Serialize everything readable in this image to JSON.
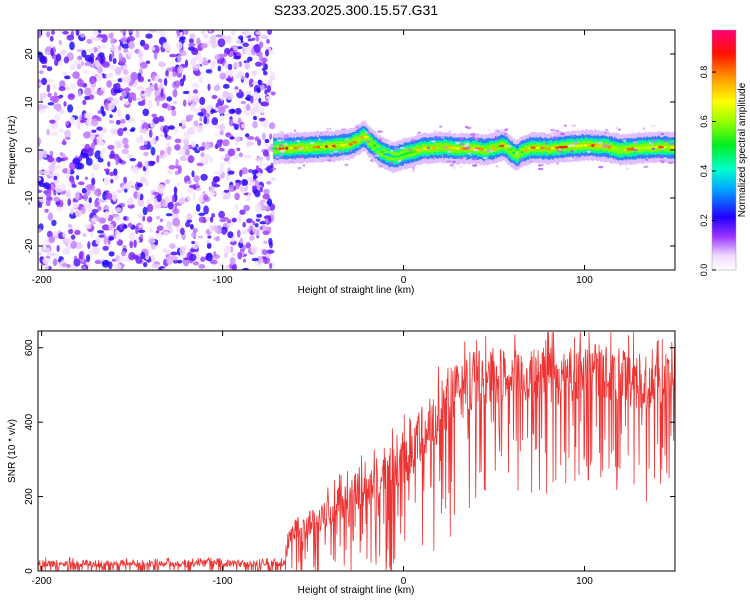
{
  "title": "S233.2025.300.15.57.G31",
  "chart_data": [
    {
      "type": "heatmap",
      "xlabel": "Height of straight line (km)",
      "ylabel": "Frequency (Hz)",
      "xlim": [
        -202,
        150
      ],
      "ylim": [
        -25,
        25
      ],
      "xticks": [
        -200,
        -100,
        0,
        100
      ],
      "yticks": [
        -20,
        -10,
        0,
        10,
        20
      ],
      "noise_region": {
        "x_from": -202,
        "x_to": -72,
        "description_value": "low-amplitude scattered noise"
      },
      "signal_trace": {
        "x": [
          -72,
          -70,
          -60,
          -50,
          -40,
          -30,
          -25,
          -22,
          -20,
          -15,
          -10,
          -5,
          0,
          5,
          10,
          20,
          30,
          40,
          45,
          50,
          55,
          60,
          62,
          65,
          70,
          80,
          90,
          100,
          110,
          120,
          130,
          140,
          150
        ],
        "frequency_hz": [
          0.3,
          0.3,
          0.4,
          0.6,
          0.8,
          1.2,
          2.2,
          3.0,
          2.0,
          0.2,
          -1.0,
          -1.5,
          -0.8,
          -0.3,
          0.2,
          0.6,
          0.3,
          0.3,
          0.0,
          0.5,
          1.0,
          -0.6,
          -1.2,
          -0.3,
          0.5,
          0.3,
          0.7,
          1.0,
          0.8,
          0.0,
          0.4,
          0.6,
          0.5
        ],
        "amplitude": [
          0.5,
          0.9,
          0.9,
          0.85,
          0.9,
          0.85,
          0.8,
          0.85,
          0.8,
          0.6,
          0.5,
          0.55,
          0.6,
          0.7,
          0.8,
          0.8,
          0.85,
          0.8,
          0.75,
          0.8,
          0.85,
          0.7,
          0.6,
          0.7,
          0.85,
          0.9,
          0.85,
          0.9,
          0.9,
          0.85,
          0.9,
          0.85,
          0.8
        ]
      },
      "colorbar": {
        "label": "Normalized spectral amplitude",
        "range": [
          0,
          0.97
        ],
        "ticks": [
          "0.0",
          "0.2",
          "0.4",
          "0.6",
          "0.8"
        ]
      }
    },
    {
      "type": "line",
      "xlabel": "Height of straight line (km)",
      "ylabel": "SNR (10 * v/v)",
      "xlim": [
        -202,
        150
      ],
      "ylim": [
        0,
        645
      ],
      "xticks": [
        -200,
        -100,
        0,
        100
      ],
      "yticks": [
        0,
        200,
        400,
        600
      ],
      "series": [
        {
          "name": "SNR",
          "color": "#ee3333",
          "x": [
            -202,
            -180,
            -160,
            -140,
            -120,
            -100,
            -80,
            -66,
            -62,
            -55,
            -45,
            -35,
            -25,
            -15,
            -5,
            5,
            15,
            25,
            35,
            45,
            55,
            65,
            75,
            85,
            95,
            105,
            115,
            125,
            135,
            145,
            150
          ],
          "mean": [
            20,
            20,
            20,
            22,
            20,
            20,
            20,
            20,
            110,
            115,
            150,
            185,
            215,
            245,
            275,
            330,
            390,
            460,
            500,
            520,
            525,
            520,
            525,
            520,
            530,
            540,
            530,
            520,
            510,
            520,
            525
          ],
          "spread": [
            12,
            12,
            12,
            12,
            12,
            12,
            12,
            12,
            40,
            45,
            55,
            60,
            65,
            75,
            90,
            100,
            110,
            110,
            100,
            90,
            90,
            90,
            95,
            95,
            90,
            85,
            90,
            100,
            100,
            95,
            90
          ]
        }
      ]
    }
  ]
}
